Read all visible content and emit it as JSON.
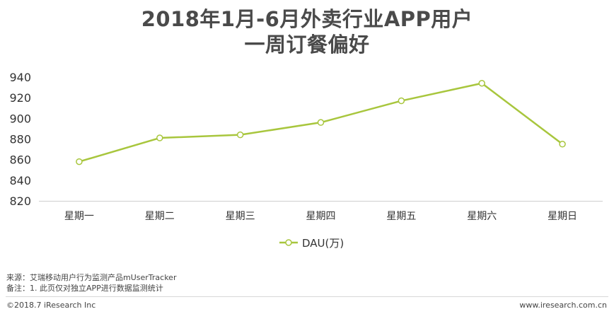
{
  "title_line1": "2018年1月-6月外卖行业APP用户",
  "title_line2": "一周订餐偏好",
  "chart_data": {
    "type": "line",
    "categories": [
      "星期一",
      "星期二",
      "星期三",
      "星期四",
      "星期五",
      "星期六",
      "星期日"
    ],
    "series": [
      {
        "name": "DAU(万)",
        "values": [
          858,
          881,
          884,
          896,
          917,
          934,
          875
        ],
        "color": "#a8c63d"
      }
    ],
    "ylim": [
      820,
      940
    ],
    "yticks": [
      820,
      840,
      860,
      880,
      900,
      920,
      940
    ],
    "grid": false,
    "legend_position": "bottom"
  },
  "notes": {
    "source": "来源：艾瑞移动用户行为监测产品mUserTracker",
    "memo": "备注：1. 此页仅对独立APP进行数据监测统计"
  },
  "footer": {
    "copyright": "©2018.7 iResearch Inc",
    "website": "www.iresearch.com.cn"
  }
}
